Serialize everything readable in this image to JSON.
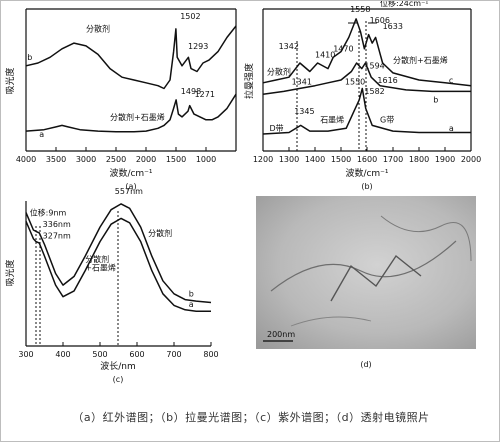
{
  "chart_data": [
    {
      "id": "a",
      "type": "line",
      "panel_label": "(a)",
      "xlabel": "波数/cm⁻¹",
      "ylabel": "吸光度",
      "xlim": [
        4000,
        500
      ],
      "x_ticks": [
        4000,
        3500,
        3000,
        2500,
        2000,
        1500,
        1000
      ],
      "series": [
        {
          "name": "b",
          "points": [
            [
              4000,
              0.6
            ],
            [
              3800,
              0.62
            ],
            [
              3600,
              0.66
            ],
            [
              3400,
              0.72
            ],
            [
              3200,
              0.76
            ],
            [
              3000,
              0.74
            ],
            [
              2800,
              0.68
            ],
            [
              2600,
              0.58
            ],
            [
              2400,
              0.52
            ],
            [
              2200,
              0.5
            ],
            [
              2000,
              0.48
            ],
            [
              1800,
              0.46
            ],
            [
              1700,
              0.44
            ],
            [
              1600,
              0.5
            ],
            [
              1540,
              0.7
            ],
            [
              1502,
              0.86
            ],
            [
              1480,
              0.66
            ],
            [
              1400,
              0.6
            ],
            [
              1293,
              0.66
            ],
            [
              1250,
              0.58
            ],
            [
              1150,
              0.56
            ],
            [
              1050,
              0.62
            ],
            [
              950,
              0.64
            ],
            [
              800,
              0.7
            ],
            [
              650,
              0.8
            ],
            [
              500,
              0.88
            ]
          ]
        },
        {
          "name": "a",
          "points": [
            [
              4000,
              0.14
            ],
            [
              3700,
              0.15
            ],
            [
              3500,
              0.17
            ],
            [
              3400,
              0.18
            ],
            [
              3300,
              0.17
            ],
            [
              3100,
              0.15
            ],
            [
              2800,
              0.14
            ],
            [
              2500,
              0.135
            ],
            [
              2200,
              0.135
            ],
            [
              2000,
              0.14
            ],
            [
              1800,
              0.16
            ],
            [
              1700,
              0.18
            ],
            [
              1600,
              0.22
            ],
            [
              1540,
              0.3
            ],
            [
              1498,
              0.36
            ],
            [
              1460,
              0.26
            ],
            [
              1400,
              0.24
            ],
            [
              1300,
              0.28
            ],
            [
              1271,
              0.32
            ],
            [
              1200,
              0.26
            ],
            [
              1100,
              0.24
            ],
            [
              1000,
              0.22
            ],
            [
              900,
              0.22
            ],
            [
              800,
              0.24
            ],
            [
              650,
              0.3
            ],
            [
              500,
              0.4
            ]
          ]
        }
      ],
      "annotations": [
        {
          "text": "分散剂",
          "x": 3000,
          "y": 0.84
        },
        {
          "text": "分散剂+石墨烯",
          "x": 2600,
          "y": 0.22
        },
        {
          "text": "b",
          "x": 3980,
          "y": 0.64
        },
        {
          "text": "a",
          "x": 3780,
          "y": 0.1
        },
        {
          "text": "1502",
          "x": 1430,
          "y": 0.93
        },
        {
          "text": "1293",
          "x": 1300,
          "y": 0.72
        },
        {
          "text": "1498",
          "x": 1420,
          "y": 0.4
        },
        {
          "text": "1271",
          "x": 1190,
          "y": 0.38
        }
      ]
    },
    {
      "id": "b",
      "type": "line",
      "panel_label": "(b)",
      "xlabel": "波数/cm⁻¹",
      "ylabel": "拉曼强度",
      "xlim": [
        1200,
        2000
      ],
      "x_ticks": [
        1200,
        1300,
        1400,
        1500,
        1600,
        1700,
        1800,
        1900,
        2000
      ],
      "series": [
        {
          "name": "b",
          "points": [
            [
              1200,
              0.48
            ],
            [
              1250,
              0.5
            ],
            [
              1300,
              0.52
            ],
            [
              1342,
              0.62
            ],
            [
              1380,
              0.56
            ],
            [
              1410,
              0.62
            ],
            [
              1450,
              0.58
            ],
            [
              1470,
              0.66
            ],
            [
              1500,
              0.7
            ],
            [
              1530,
              0.8
            ],
            [
              1558,
              0.93
            ],
            [
              1575,
              0.84
            ],
            [
              1590,
              0.72
            ],
            [
              1606,
              0.82
            ],
            [
              1620,
              0.76
            ],
            [
              1633,
              0.8
            ],
            [
              1660,
              0.62
            ],
            [
              1700,
              0.55
            ],
            [
              1800,
              0.5
            ],
            [
              1900,
              0.48
            ],
            [
              2000,
              0.46
            ]
          ]
        },
        {
          "name": "c",
          "points": [
            [
              1200,
              0.4
            ],
            [
              1280,
              0.42
            ],
            [
              1340,
              0.44
            ],
            [
              1400,
              0.46
            ],
            [
              1450,
              0.48
            ],
            [
              1500,
              0.5
            ],
            [
              1540,
              0.56
            ],
            [
              1560,
              0.62
            ],
            [
              1580,
              0.58
            ],
            [
              1594,
              0.62
            ],
            [
              1616,
              0.52
            ],
            [
              1650,
              0.46
            ],
            [
              1750,
              0.43
            ],
            [
              1850,
              0.42
            ],
            [
              2000,
              0.42
            ]
          ]
        },
        {
          "name": "a",
          "points": [
            [
              1200,
              0.12
            ],
            [
              1300,
              0.13
            ],
            [
              1345,
              0.18
            ],
            [
              1380,
              0.14
            ],
            [
              1450,
              0.14
            ],
            [
              1520,
              0.16
            ],
            [
              1550,
              0.28
            ],
            [
              1570,
              0.36
            ],
            [
              1582,
              0.44
            ],
            [
              1595,
              0.3
            ],
            [
              1620,
              0.18
            ],
            [
              1700,
              0.14
            ],
            [
              1800,
              0.13
            ],
            [
              1900,
              0.13
            ],
            [
              2000,
              0.13
            ]
          ]
        }
      ],
      "annotations": [
        {
          "text": "1342",
          "x": 1260,
          "y": 0.72
        },
        {
          "text": "1410",
          "x": 1400,
          "y": 0.66
        },
        {
          "text": "1470",
          "x": 1470,
          "y": 0.7
        },
        {
          "text": "1558",
          "x": 1535,
          "y": 0.98
        },
        {
          "text": "1606",
          "x": 1610,
          "y": 0.9
        },
        {
          "text": "1633",
          "x": 1660,
          "y": 0.86
        },
        {
          "text": "位移:24cm⁻¹",
          "x": 1650,
          "y": 1.02
        },
        {
          "text": "分散剂",
          "x": 1215,
          "y": 0.54
        },
        {
          "text": "1341",
          "x": 1310,
          "y": 0.47
        },
        {
          "text": "1550",
          "x": 1515,
          "y": 0.47
        },
        {
          "text": "1594",
          "x": 1590,
          "y": 0.58
        },
        {
          "text": "1616",
          "x": 1640,
          "y": 0.48
        },
        {
          "text": "分散剂+石墨烯",
          "x": 1700,
          "y": 0.62
        },
        {
          "text": "c",
          "x": 1915,
          "y": 0.48
        },
        {
          "text": "b",
          "x": 1855,
          "y": 0.34
        },
        {
          "text": "1345",
          "x": 1320,
          "y": 0.26
        },
        {
          "text": "石墨烯",
          "x": 1420,
          "y": 0.2
        },
        {
          "text": "1582",
          "x": 1590,
          "y": 0.4
        },
        {
          "text": "D带",
          "x": 1225,
          "y": 0.14
        },
        {
          "text": "G带",
          "x": 1650,
          "y": 0.2
        },
        {
          "text": "a",
          "x": 1915,
          "y": 0.14
        }
      ]
    },
    {
      "id": "c",
      "type": "line",
      "panel_label": "(c)",
      "xlabel": "波长/nm",
      "ylabel": "吸光度",
      "xlim": [
        300,
        800
      ],
      "x_ticks": [
        300,
        400,
        500,
        600,
        700,
        800
      ],
      "series": [
        {
          "name": "b",
          "points": [
            [
              300,
              0.92
            ],
            [
              310,
              0.86
            ],
            [
              320,
              0.8
            ],
            [
              327,
              0.79
            ],
            [
              336,
              0.78
            ],
            [
              350,
              0.7
            ],
            [
              380,
              0.5
            ],
            [
              400,
              0.42
            ],
            [
              430,
              0.48
            ],
            [
              460,
              0.62
            ],
            [
              500,
              0.82
            ],
            [
              530,
              0.94
            ],
            [
              557,
              0.98
            ],
            [
              580,
              0.95
            ],
            [
              610,
              0.82
            ],
            [
              640,
              0.62
            ],
            [
              670,
              0.45
            ],
            [
              700,
              0.36
            ],
            [
              730,
              0.32
            ],
            [
              760,
              0.31
            ],
            [
              800,
              0.3
            ]
          ]
        },
        {
          "name": "a",
          "points": [
            [
              300,
              0.86
            ],
            [
              310,
              0.8
            ],
            [
              320,
              0.74
            ],
            [
              327,
              0.72
            ],
            [
              336,
              0.71
            ],
            [
              350,
              0.62
            ],
            [
              380,
              0.42
            ],
            [
              400,
              0.34
            ],
            [
              430,
              0.38
            ],
            [
              460,
              0.52
            ],
            [
              500,
              0.72
            ],
            [
              530,
              0.84
            ],
            [
              557,
              0.88
            ],
            [
              580,
              0.85
            ],
            [
              610,
              0.72
            ],
            [
              640,
              0.52
            ],
            [
              670,
              0.36
            ],
            [
              700,
              0.28
            ],
            [
              730,
              0.25
            ],
            [
              760,
              0.24
            ],
            [
              800,
              0.24
            ]
          ]
        }
      ],
      "annotations": [
        {
          "text": "557nm",
          "x": 540,
          "y": 1.05
        },
        {
          "text": "位移:9nm",
          "x": 310,
          "y": 0.9
        },
        {
          "text": "336nm",
          "x": 345,
          "y": 0.82
        },
        {
          "text": "327nm",
          "x": 345,
          "y": 0.74
        },
        {
          "text": "分散剂",
          "x": 630,
          "y": 0.76
        },
        {
          "text": "分散剂",
          "x": 460,
          "y": 0.58
        },
        {
          "text": "+石墨烯",
          "x": 460,
          "y": 0.52
        },
        {
          "text": "b",
          "x": 740,
          "y": 0.34
        },
        {
          "text": "a",
          "x": 740,
          "y": 0.27
        }
      ]
    }
  ],
  "image_panel": {
    "panel_label": "(d)",
    "scale_bar_label": "200nm"
  },
  "caption": "（a）红外谱图；（b）拉曼光谱图；（c）紫外谱图；（d）透射电镜照片"
}
